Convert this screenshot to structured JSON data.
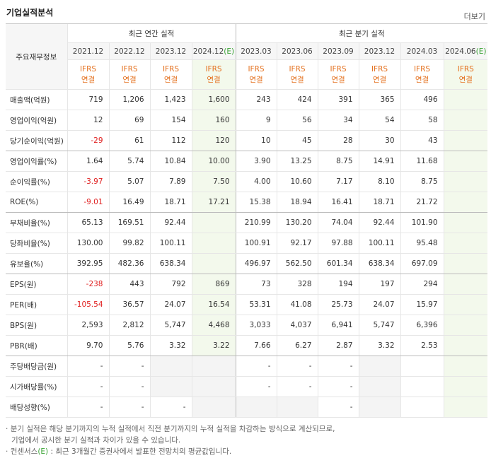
{
  "title": "기업실적분석",
  "more": "더보기",
  "table": {
    "corner": "주요재무정보",
    "groups": [
      {
        "label": "최근 연간 실적",
        "span": 4
      },
      {
        "label": "최근 분기 실적",
        "span": 6
      }
    ],
    "periods": [
      {
        "date": "2021.12"
      },
      {
        "date": "2022.12"
      },
      {
        "date": "2023.12"
      },
      {
        "date": "2024.12",
        "est": "(E)"
      },
      {
        "date": "2023.03"
      },
      {
        "date": "2023.06"
      },
      {
        "date": "2023.09"
      },
      {
        "date": "2023.12"
      },
      {
        "date": "2024.03"
      },
      {
        "date": "2024.06",
        "est": "(E)"
      }
    ],
    "basis": [
      [
        "IFRS",
        "연결"
      ],
      [
        "IFRS",
        "연결"
      ],
      [
        "IFRS",
        "연결"
      ],
      [
        "IFRS",
        "연결"
      ],
      [
        "IFRS",
        "연결"
      ],
      [
        "IFRS",
        "연결"
      ],
      [
        "IFRS",
        "연결"
      ],
      [
        "IFRS",
        "연결"
      ],
      [
        "IFRS",
        "연결"
      ],
      [
        "IFRS",
        "연결"
      ]
    ],
    "rows": [
      {
        "label": "매출액(억원)",
        "cells": [
          "719",
          "1,206",
          "1,423",
          "1,600",
          "243",
          "424",
          "391",
          "365",
          "496",
          null
        ]
      },
      {
        "label": "영업이익(억원)",
        "cells": [
          "12",
          "69",
          "154",
          "160",
          "9",
          "56",
          "34",
          "54",
          "58",
          null
        ]
      },
      {
        "label": "당기순이익(억원)",
        "cells": [
          "-29",
          "61",
          "112",
          "120",
          "10",
          "45",
          "28",
          "30",
          "43",
          null
        ]
      },
      {
        "label": "영업이익률(%)",
        "cells": [
          "1.64",
          "5.74",
          "10.84",
          "10.00",
          "3.90",
          "13.25",
          "8.75",
          "14.91",
          "11.68",
          null
        ]
      },
      {
        "label": "순이익률(%)",
        "cells": [
          "-3.97",
          "5.07",
          "7.89",
          "7.50",
          "4.00",
          "10.60",
          "7.17",
          "8.10",
          "8.75",
          null
        ]
      },
      {
        "label": "ROE(%)",
        "cells": [
          "-9.01",
          "16.49",
          "18.71",
          "17.21",
          "15.38",
          "18.94",
          "16.41",
          "18.71",
          "21.72",
          null
        ]
      },
      {
        "label": "부채비율(%)",
        "cells": [
          "65.13",
          "169.51",
          "92.44",
          null,
          "210.99",
          "130.20",
          "74.04",
          "92.44",
          "101.90",
          null
        ]
      },
      {
        "label": "당좌비율(%)",
        "cells": [
          "130.00",
          "99.82",
          "100.11",
          null,
          "100.91",
          "92.17",
          "97.88",
          "100.11",
          "95.48",
          null
        ]
      },
      {
        "label": "유보율(%)",
        "cells": [
          "392.95",
          "482.36",
          "638.34",
          null,
          "496.97",
          "562.50",
          "601.34",
          "638.34",
          "697.09",
          null
        ]
      },
      {
        "label": "EPS(원)",
        "cells": [
          "-238",
          "443",
          "792",
          "869",
          "73",
          "328",
          "194",
          "197",
          "294",
          null
        ]
      },
      {
        "label": "PER(배)",
        "cells": [
          "-105.54",
          "36.57",
          "24.07",
          "16.54",
          "53.31",
          "41.08",
          "25.73",
          "24.07",
          "15.97",
          null
        ]
      },
      {
        "label": "BPS(원)",
        "cells": [
          "2,593",
          "2,812",
          "5,747",
          "4,468",
          "3,033",
          "4,037",
          "6,941",
          "5,747",
          "6,396",
          null
        ]
      },
      {
        "label": "PBR(배)",
        "cells": [
          "9.70",
          "5.76",
          "3.32",
          "3.22",
          "7.66",
          "6.27",
          "2.87",
          "3.32",
          "2.53",
          null
        ]
      },
      {
        "label": "주당배당금(원)",
        "cells": [
          "-",
          "-",
          null,
          null,
          "-",
          "-",
          "-",
          null,
          null,
          null
        ]
      },
      {
        "label": "시가배당률(%)",
        "cells": [
          "-",
          "-",
          null,
          null,
          "-",
          "-",
          "-",
          null,
          null,
          null
        ]
      },
      {
        "label": "배당성향(%)",
        "cells": [
          "-",
          "-",
          "-",
          null,
          null,
          null,
          "-",
          null,
          null,
          null
        ]
      }
    ]
  },
  "notes": [
    {
      "parts": [
        "분기 실적은 해당 분기까지의 누적 실적에서 직전 분기까지의 누적 실적을 차감하는 방식으로 계산되므로,",
        "기업에서 공시한 분기 실적과 차이가 있을 수 있습니다."
      ]
    },
    {
      "parts": [
        "컨센서스",
        "(E)",
        " : 최근 3개월간 증권사에서 발표한 전망치의 평균값입니다."
      ]
    }
  ]
}
